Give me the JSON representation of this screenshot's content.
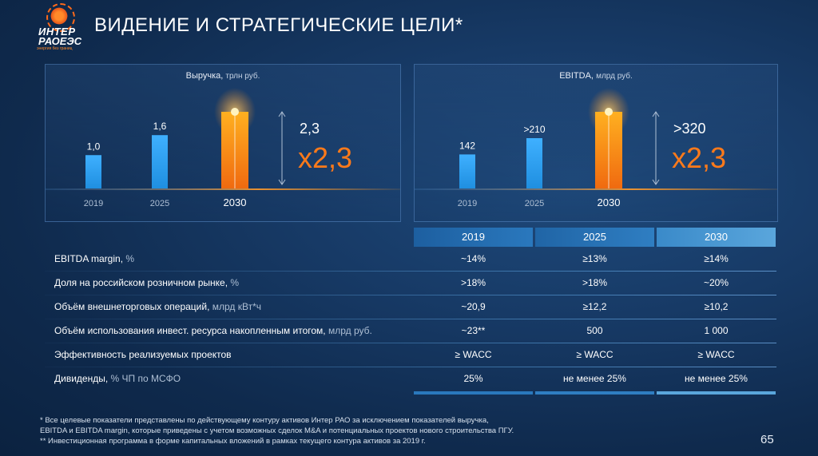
{
  "logo": {
    "line1": "ИНТЕР",
    "line2": "РАОЕЭС",
    "tagline": "энергия без границ"
  },
  "title": "ВИДЕНИЕ И СТРАТЕГИЧЕСКИЕ ЦЕЛИ*",
  "chart_data": [
    {
      "type": "bar",
      "title": "Выручка,",
      "unit": "трлн руб.",
      "categories": [
        "2019",
        "2025",
        "2030"
      ],
      "values": [
        1.0,
        1.6,
        2.3
      ],
      "value_labels": [
        "1,0",
        "1,6",
        ""
      ],
      "highlight_category": "2030",
      "annotation": {
        "value": "2,3",
        "multiplier": "x2,3"
      },
      "colors": {
        "base": "#1f8fe0",
        "highlight": "#ff8c1a"
      }
    },
    {
      "type": "bar",
      "title": "EBITDA,",
      "unit": "млрд руб.",
      "categories": [
        "2019",
        "2025",
        "2030"
      ],
      "values": [
        142,
        210,
        320
      ],
      "value_labels": [
        "142",
        ">210",
        ""
      ],
      "highlight_category": "2030",
      "annotation": {
        "value": ">320",
        "multiplier": "x2,3"
      },
      "colors": {
        "base": "#1f8fe0",
        "highlight": "#ff8c1a"
      }
    }
  ],
  "table": {
    "columns": [
      "2019",
      "2025",
      "2030"
    ],
    "rows": [
      {
        "label": "EBITDA margin,",
        "unit": " %",
        "values": [
          "~14%",
          "≥13%",
          "≥14%"
        ]
      },
      {
        "label": "Доля на российском розничном рынке,",
        "unit": " %",
        "values": [
          ">18%",
          ">18%",
          "~20%"
        ]
      },
      {
        "label": "Объём внешнеторговых операций,",
        "unit": " млрд кВт*ч",
        "values": [
          "~20,9",
          "≥12,2",
          "≥10,2"
        ]
      },
      {
        "label": "Объём использования инвест. ресурса накопленным итогом,",
        "unit": " млрд руб.",
        "values": [
          "~23**",
          "500",
          "1 000"
        ]
      },
      {
        "label": "Эффективность реализуемых проектов",
        "unit": "",
        "values": [
          "≥ WACC",
          "≥ WACC",
          "≥ WACC"
        ]
      },
      {
        "label": "Дивиденды,",
        "unit": " % ЧП по МСФО",
        "values": [
          "25%",
          "не менее 25%",
          "не менее 25%"
        ]
      }
    ]
  },
  "notes": [
    "* Все целевые показатели представлены по действующему контуру активов Интер РАО за исключением показателей выручка,",
    "EBITDA и EBITDA margin, которые приведены с учетом возможных сделок M&A и потенциальных проектов нового строительства ПГУ.",
    "** Инвестиционная программа в форме капитальных вложений в рамках текущего контура активов  за 2019 г."
  ],
  "page_number": "65"
}
